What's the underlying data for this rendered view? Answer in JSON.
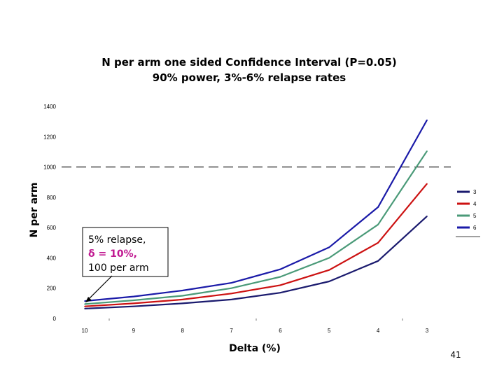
{
  "chart_data": {
    "type": "line",
    "title": "N per arm one sided Confidence Interval (P=0.05)",
    "subtitle": "90% power, 3%-6% relapse rates",
    "xlabel": "Delta (%)",
    "ylabel": "N per arm",
    "categories": [
      "10",
      "9",
      "8",
      "7",
      "6",
      "5",
      "4",
      "3"
    ],
    "ylim": [
      0,
      1400
    ],
    "yticks": [
      "0",
      "200",
      "400",
      "600",
      "800",
      "1000",
      "1200",
      "1400"
    ],
    "reference_line": {
      "y": 1000,
      "style": "dashed"
    },
    "legend_placement": "right",
    "series": [
      {
        "name": "3",
        "color": "#1a1a6e",
        "values": [
          65,
          80,
          100,
          125,
          170,
          245,
          380,
          675
        ]
      },
      {
        "name": "4",
        "color": "#cc1111",
        "values": [
          80,
          100,
          125,
          165,
          220,
          320,
          500,
          890
        ]
      },
      {
        "name": "5",
        "color": "#4a9a78",
        "values": [
          95,
          120,
          150,
          200,
          275,
          400,
          620,
          1105
        ]
      },
      {
        "name": "6",
        "color": "#1a1aa8",
        "values": [
          115,
          145,
          185,
          235,
          325,
          470,
          735,
          1310
        ]
      }
    ],
    "annotation": {
      "lines": [
        "5% relapse,",
        "δ = 10%,",
        "100 per arm"
      ],
      "colors": [
        "#000000",
        "#c01890",
        "#000000"
      ]
    }
  },
  "page_number": "41"
}
